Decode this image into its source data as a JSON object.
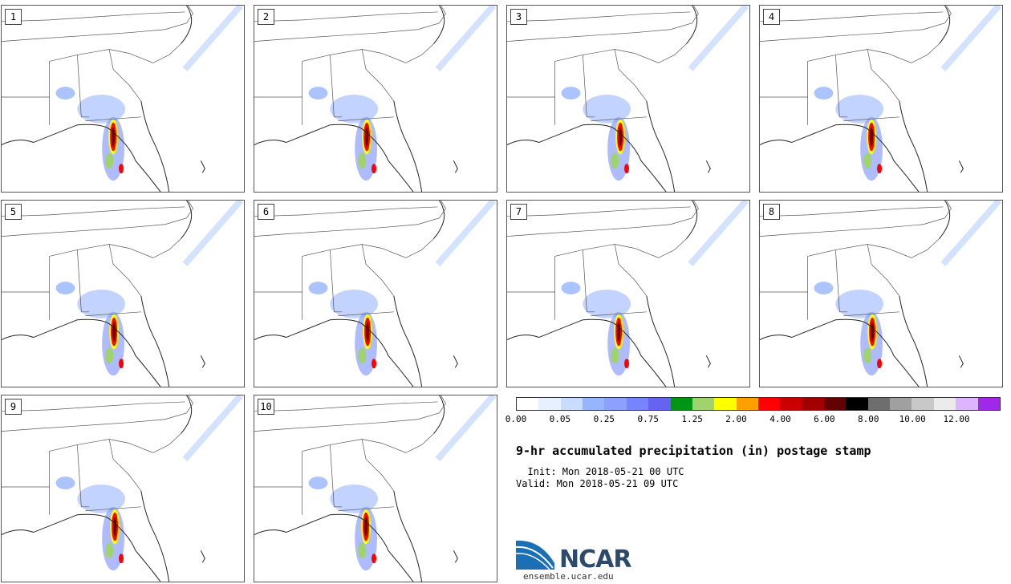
{
  "panels": [
    {
      "label": "1"
    },
    {
      "label": "2"
    },
    {
      "label": "3"
    },
    {
      "label": "4"
    },
    {
      "label": "5"
    },
    {
      "label": "6"
    },
    {
      "label": "7"
    },
    {
      "label": "8"
    },
    {
      "label": "9"
    },
    {
      "label": "10"
    }
  ],
  "colorbar": {
    "colors": [
      "#ffffff",
      "#e6f0ff",
      "#c8dcff",
      "#96b4ff",
      "#8ca0ff",
      "#7884ff",
      "#6464f0",
      "#009614",
      "#a0d26e",
      "#ffff00",
      "#ffa000",
      "#ff0000",
      "#c80000",
      "#a00000",
      "#640000",
      "#000000",
      "#6e6e6e",
      "#a0a0a0",
      "#c8c8c8",
      "#ebebeb",
      "#dcb4ff",
      "#a028e6"
    ],
    "ticks": [
      "0.00",
      "0.05",
      "0.25",
      "0.75",
      "1.25",
      "2.00",
      "4.00",
      "6.00",
      "8.00",
      "10.00",
      "12.00"
    ]
  },
  "title": "9-hr accumulated precipitation (in) postage stamp",
  "init_line": "  Init: Mon 2018-05-21 00 UTC",
  "valid_line": "Valid: Mon 2018-05-21 09 UTC",
  "logo": {
    "name": "NCAR",
    "url": "ensemble.ucar.edu"
  }
}
